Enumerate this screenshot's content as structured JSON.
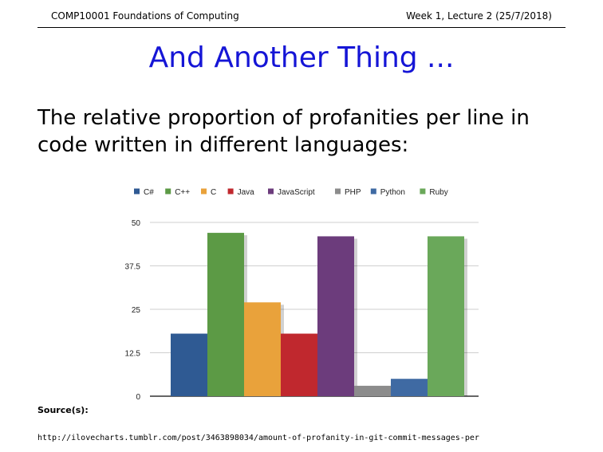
{
  "header": {
    "course": "COMP10001 Foundations of Computing",
    "lecture": "Week 1, Lecture 2 (25/7/2018)"
  },
  "slide": {
    "title": "And Another Thing ...",
    "body": "The relative proportion of profanities per line in code written in different languages:",
    "source_label": "Source(s):",
    "source_url": "http://ilovecharts.tumblr.com/post/3463898034/amount-of-profanity-in-git-commit-messages-per"
  },
  "chart_data": {
    "type": "bar",
    "legend_position": "top",
    "grid": true,
    "ylim": [
      0,
      50
    ],
    "yticks": [
      "0",
      "12.5",
      "25",
      "37.5",
      "50"
    ],
    "series": [
      {
        "name": "C#",
        "value": 18,
        "color": "#2f5a93"
      },
      {
        "name": "C++",
        "value": 47,
        "color": "#5c9a45"
      },
      {
        "name": "C",
        "value": 27,
        "color": "#e9a23b"
      },
      {
        "name": "Java",
        "value": 18,
        "color": "#c0282e"
      },
      {
        "name": "JavaScript",
        "value": 46,
        "color": "#6c3c7c"
      },
      {
        "name": "PHP",
        "value": 3,
        "color": "#8c8c8c"
      },
      {
        "name": "Python",
        "value": 5,
        "color": "#3f6aa3"
      },
      {
        "name": "Ruby",
        "value": 46,
        "color": "#6aa85a"
      }
    ]
  }
}
